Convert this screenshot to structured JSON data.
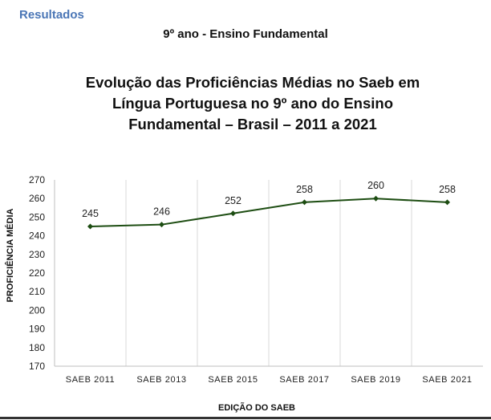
{
  "header": {
    "section_label": "Resultados",
    "subtitle": "9º ano - Ensino Fundamental"
  },
  "chart_data": {
    "type": "line",
    "title_lines": [
      "Evolução das Proficiências Médias no Saeb em",
      "Língua Portuguesa no 9º ano do Ensino",
      "Fundamental – Brasil – 2011 a 2021"
    ],
    "xlabel": "EDIÇÃO DO SAEB",
    "ylabel": "PROFICIÊNCIA MÉDIA",
    "categories": [
      "SAEB 2011",
      "SAEB 2013",
      "SAEB 2015",
      "SAEB 2017",
      "SAEB 2019",
      "SAEB 2021"
    ],
    "values": [
      245,
      246,
      252,
      258,
      260,
      258
    ],
    "data_labels": [
      "245",
      "246",
      "252",
      "258",
      "260",
      "258"
    ],
    "ylim": [
      170,
      270
    ],
    "yticks": [
      170,
      180,
      190,
      200,
      210,
      220,
      230,
      240,
      250,
      260,
      270
    ],
    "grid": "vertical",
    "legend": "none",
    "colors": {
      "line": "#1d4d12",
      "grid": "#d9d9d9",
      "axis": "#bfbfbf"
    }
  }
}
